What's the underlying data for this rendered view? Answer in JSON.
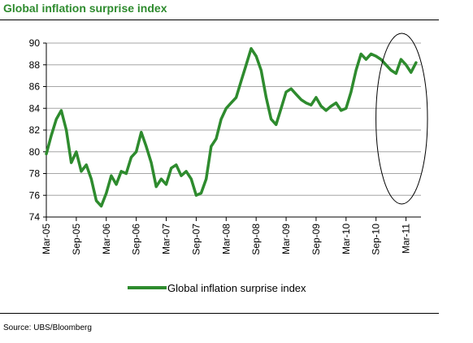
{
  "title": "Global inflation surprise index",
  "source": "Source: UBS/Bloomberg",
  "chart_data": {
    "type": "line",
    "title": "Global inflation surprise index",
    "xlabel": "",
    "ylabel": "",
    "ylim": [
      74,
      90
    ],
    "yticks": [
      74,
      76,
      78,
      80,
      82,
      84,
      86,
      88,
      90
    ],
    "x_start": "2005-03",
    "x_end": "2011-06",
    "xtick_labels": [
      "Mar-05",
      "Sep-05",
      "Mar-06",
      "Sep-06",
      "Mar-07",
      "Sep-07",
      "Mar-08",
      "Sep-08",
      "Mar-09",
      "Sep-09",
      "Mar-10",
      "Sep-10",
      "Mar-11"
    ],
    "grid": "horizontal",
    "legend": "bottom-center",
    "series_color": "#2e8b2e",
    "annotation": "ellipse around Sep-10 to Mar-11",
    "series": [
      {
        "name": "Global inflation surprise index",
        "points": [
          [
            "2005-03",
            79.8
          ],
          [
            "2005-04",
            81.5
          ],
          [
            "2005-05",
            83.0
          ],
          [
            "2005-06",
            83.8
          ],
          [
            "2005-07",
            82.0
          ],
          [
            "2005-08",
            79.0
          ],
          [
            "2005-09",
            80.0
          ],
          [
            "2005-10",
            78.2
          ],
          [
            "2005-11",
            78.8
          ],
          [
            "2005-12",
            77.5
          ],
          [
            "2006-01",
            75.5
          ],
          [
            "2006-02",
            75.0
          ],
          [
            "2006-03",
            76.2
          ],
          [
            "2006-04",
            77.8
          ],
          [
            "2006-05",
            77.0
          ],
          [
            "2006-06",
            78.2
          ],
          [
            "2006-07",
            78.0
          ],
          [
            "2006-08",
            79.5
          ],
          [
            "2006-09",
            80.0
          ],
          [
            "2006-10",
            81.8
          ],
          [
            "2006-11",
            80.5
          ],
          [
            "2006-12",
            79.0
          ],
          [
            "2007-01",
            76.8
          ],
          [
            "2007-02",
            77.5
          ],
          [
            "2007-03",
            77.0
          ],
          [
            "2007-04",
            78.5
          ],
          [
            "2007-05",
            78.8
          ],
          [
            "2007-06",
            77.8
          ],
          [
            "2007-07",
            78.2
          ],
          [
            "2007-08",
            77.5
          ],
          [
            "2007-09",
            76.0
          ],
          [
            "2007-10",
            76.2
          ],
          [
            "2007-11",
            77.5
          ],
          [
            "2007-12",
            80.5
          ],
          [
            "2008-01",
            81.2
          ],
          [
            "2008-02",
            83.0
          ],
          [
            "2008-03",
            84.0
          ],
          [
            "2008-04",
            84.5
          ],
          [
            "2008-05",
            85.0
          ],
          [
            "2008-06",
            86.5
          ],
          [
            "2008-07",
            88.0
          ],
          [
            "2008-08",
            89.5
          ],
          [
            "2008-09",
            88.8
          ],
          [
            "2008-10",
            87.5
          ],
          [
            "2008-11",
            85.0
          ],
          [
            "2008-12",
            83.0
          ],
          [
            "2009-01",
            82.5
          ],
          [
            "2009-02",
            84.0
          ],
          [
            "2009-03",
            85.5
          ],
          [
            "2009-04",
            85.8
          ],
          [
            "2009-05",
            85.3
          ],
          [
            "2009-06",
            84.8
          ],
          [
            "2009-07",
            84.5
          ],
          [
            "2009-08",
            84.3
          ],
          [
            "2009-09",
            85.0
          ],
          [
            "2009-10",
            84.2
          ],
          [
            "2009-11",
            83.8
          ],
          [
            "2009-12",
            84.2
          ],
          [
            "2010-01",
            84.5
          ],
          [
            "2010-02",
            83.8
          ],
          [
            "2010-03",
            84.0
          ],
          [
            "2010-04",
            85.5
          ],
          [
            "2010-05",
            87.5
          ],
          [
            "2010-06",
            89.0
          ],
          [
            "2010-07",
            88.5
          ],
          [
            "2010-08",
            89.0
          ],
          [
            "2010-09",
            88.8
          ],
          [
            "2010-10",
            88.5
          ],
          [
            "2010-11",
            88.0
          ],
          [
            "2010-12",
            87.5
          ],
          [
            "2011-01",
            87.2
          ],
          [
            "2011-02",
            88.5
          ],
          [
            "2011-03",
            88.0
          ],
          [
            "2011-04",
            87.3
          ],
          [
            "2011-05",
            88.2
          ]
        ]
      }
    ]
  }
}
